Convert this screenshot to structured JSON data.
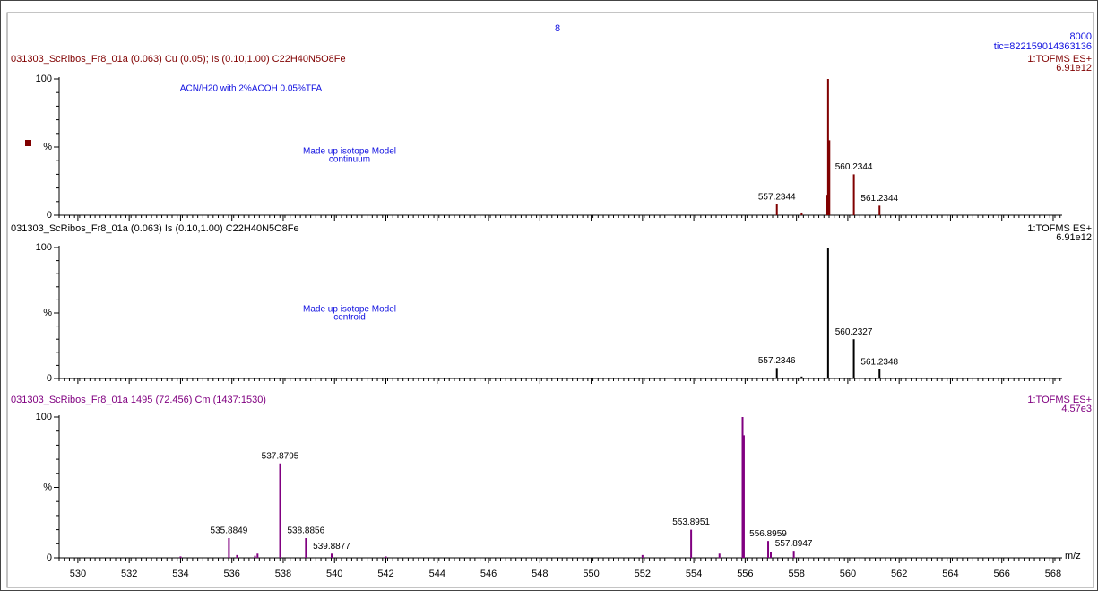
{
  "header": {
    "scan": "8",
    "right": "8000",
    "tic": "tic=822159014363136"
  },
  "chart_data": [
    {
      "type": "stick",
      "title": "031303_ScRibos_Fr8_01a (0.063) Cu (0.05); Is (0.10,1.00) C22H40N5O8Fe",
      "title_color": "#800000",
      "color": "#800000",
      "annotations": [
        "ACN/H20 with 2%ACOH 0.05%TFA",
        "Made up isotope Model",
        "continuum"
      ],
      "mode": "1:TOFMS ES+",
      "scale": "6.91e12",
      "x": [
        557.2344,
        560.2344,
        561.2344
      ],
      "values": [
        8,
        30,
        7
      ],
      "minor_x": [
        558.2,
        559.17,
        559.23,
        559.28
      ],
      "minor_values": [
        2,
        15,
        100,
        55
      ],
      "xlim": [
        529.27,
        568.35
      ],
      "ylim": [
        0,
        100
      ],
      "yticks": [
        0,
        {
          "value": 50,
          "label": "%"
        },
        100
      ],
      "xticks": [
        530,
        532,
        534,
        536,
        538,
        540,
        542,
        544,
        546,
        548,
        550,
        552,
        554,
        556,
        558,
        560,
        562,
        564,
        566,
        568
      ],
      "xtick_labels": false
    },
    {
      "type": "stick",
      "title": "031303_ScRibos_Fr8_01a (0.063) Is (0.10,1.00) C22H40N5O8Fe",
      "title_color": "#000000",
      "color": "#000000",
      "annotations": [
        "Made up isotope Model",
        "centroid"
      ],
      "mode": "1:TOFMS ES+",
      "scale": "6.91e12",
      "x": [
        557.2346,
        560.2327,
        561.2348
      ],
      "values": [
        8,
        30,
        7
      ],
      "minor_x": [
        558.2,
        559.23
      ],
      "minor_values": [
        1.5,
        100
      ],
      "xlim": [
        529.27,
        568.35
      ],
      "ylim": [
        0,
        100
      ],
      "yticks": [
        0,
        {
          "value": 50,
          "label": "%"
        },
        100
      ],
      "xticks": [
        530,
        532,
        534,
        536,
        538,
        540,
        542,
        544,
        546,
        548,
        550,
        552,
        554,
        556,
        558,
        560,
        562,
        564,
        566,
        568
      ],
      "xtick_labels": false
    },
    {
      "type": "stick",
      "title": "031303_ScRibos_Fr8_01a 1495 (72.456) Cm (1437:1530)",
      "title_color": "#800080",
      "color": "#800080",
      "annotations": [],
      "mode": "1:TOFMS ES+",
      "scale": "4.57e3",
      "x": [
        535.8849,
        537.8795,
        538.8856,
        539.8877,
        553.8951,
        556.8959,
        557.8947
      ],
      "values": [
        14,
        67,
        14,
        3,
        20,
        12,
        5
      ],
      "minor_x": [
        534.0,
        536.2,
        536.9,
        537.0,
        542.0,
        552.0,
        555.0,
        555.9,
        555.95,
        557.0
      ],
      "minor_values": [
        1,
        2,
        1.5,
        3,
        1,
        2,
        3,
        100,
        87,
        4
      ],
      "xlim": [
        529.27,
        568.35
      ],
      "ylim": [
        0,
        100
      ],
      "yticks": [
        0,
        {
          "value": 50,
          "label": "%"
        },
        100
      ],
      "xticks": [
        530,
        532,
        534,
        536,
        538,
        540,
        542,
        544,
        546,
        548,
        550,
        552,
        554,
        556,
        558,
        560,
        562,
        564,
        566,
        568
      ],
      "xtick_labels": true,
      "xlabel": "m/z"
    }
  ]
}
